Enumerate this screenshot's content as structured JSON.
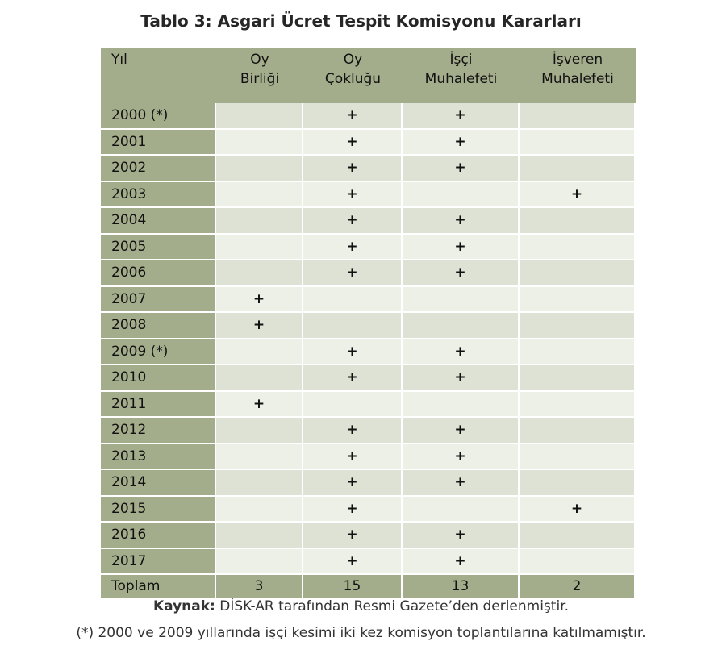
{
  "title": "Tablo 3: Asgari Ücret Tespit Komisyonu Kararları",
  "headers": [
    "Yıl",
    "Oy\nBirliği",
    "Oy\nÇokluğu",
    "İşçi\nMuhalefeti",
    "İşveren\nMuhalefeti"
  ],
  "rows": [
    [
      "2000 (*)",
      "",
      "+",
      "+",
      ""
    ],
    [
      "2001",
      "",
      "+",
      "+",
      ""
    ],
    [
      "2002",
      "",
      "+",
      "+",
      ""
    ],
    [
      "2003",
      "",
      "+",
      "",
      "+"
    ],
    [
      "2004",
      "",
      "+",
      "+",
      ""
    ],
    [
      "2005",
      "",
      "+",
      "+",
      ""
    ],
    [
      "2006",
      "",
      "+",
      "+",
      ""
    ],
    [
      "2007",
      "+",
      "",
      "",
      ""
    ],
    [
      "2008",
      "+",
      "",
      "",
      ""
    ],
    [
      "2009 (*)",
      "",
      "+",
      "+",
      ""
    ],
    [
      "2010",
      "",
      "+",
      "+",
      ""
    ],
    [
      "2011",
      "+",
      "",
      "",
      ""
    ],
    [
      "2012",
      "",
      "+",
      "+",
      ""
    ],
    [
      "2013",
      "",
      "+",
      "+",
      ""
    ],
    [
      "2014",
      "",
      "+",
      "+",
      ""
    ],
    [
      "2015",
      "",
      "+",
      "",
      "+"
    ],
    [
      "2016",
      "",
      "+",
      "+",
      ""
    ],
    [
      "2017",
      "",
      "+",
      "+",
      ""
    ]
  ],
  "total": [
    "Toplam",
    "3",
    "15",
    "13",
    "2"
  ],
  "source_label": "Kaynak:",
  "source_text": " DİSK-AR tarafından Resmi Gazete’den derlenmiştir.",
  "note": "(*) 2000 ve 2009 yıllarında işçi kesimi iki kez komisyon toplantılarına katılmamıştır.",
  "colors": {
    "header_bg": "#a4ad8b",
    "row_odd_bg": "#dee2d4",
    "row_even_bg": "#edf0e7"
  }
}
